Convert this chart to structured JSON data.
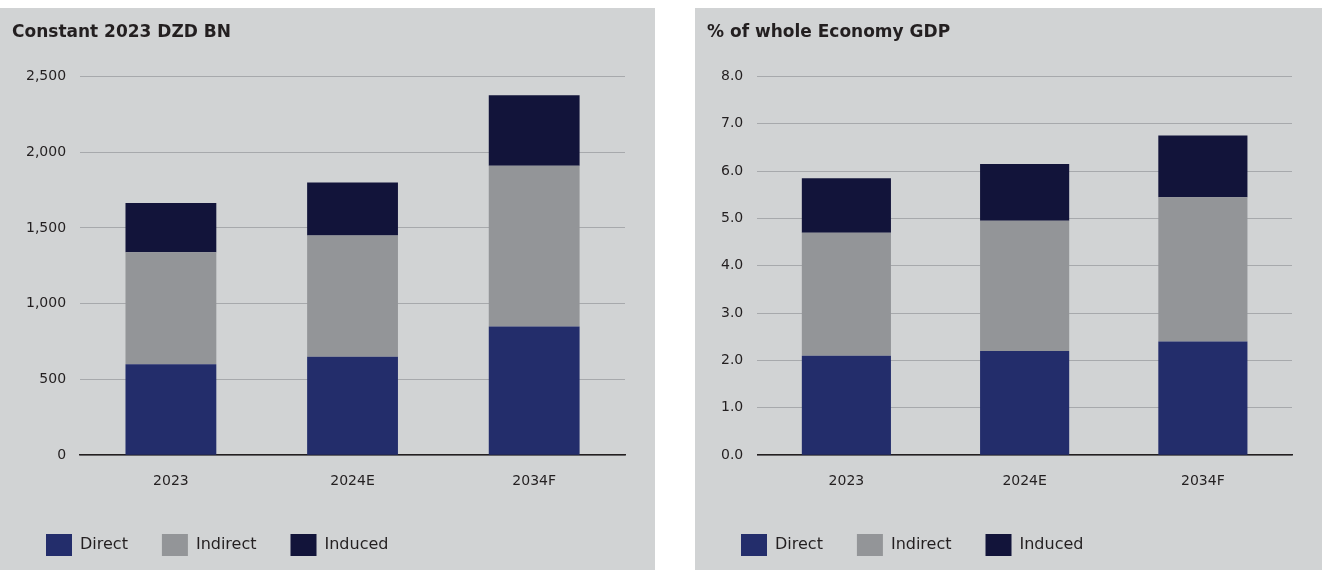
{
  "chart_data": [
    {
      "type": "bar",
      "title": "Constant 2023 DZD BN",
      "categories": [
        "2023",
        "2024E",
        "2034F"
      ],
      "stacked": true,
      "grid": "y",
      "legend": "bottom",
      "ylim": [
        0,
        2500
      ],
      "yticks": [
        0,
        500,
        {
          "value": 1000,
          "label": "1,000"
        },
        {
          "value": 1500,
          "label": "1,500"
        },
        {
          "value": 2000,
          "label": "2,000"
        },
        {
          "value": 2500,
          "label": "2,500"
        }
      ],
      "series": [
        {
          "name": "Direct",
          "color": "#232d6b",
          "values": [
            600,
            650,
            850
          ]
        },
        {
          "name": "Indirect",
          "color": "#939598",
          "values": [
            740,
            800,
            1060
          ]
        },
        {
          "name": "Induced",
          "color": "#12143a",
          "values": [
            325,
            350,
            465
          ]
        }
      ]
    },
    {
      "type": "bar",
      "title": "% of whole Economy GDP",
      "categories": [
        "2023",
        "2024E",
        "2034F"
      ],
      "stacked": true,
      "grid": "y",
      "legend": "bottom",
      "ylim": [
        0,
        8
      ],
      "yticks": [
        {
          "value": 0,
          "label": "0.0"
        },
        {
          "value": 1,
          "label": "1.0"
        },
        {
          "value": 2,
          "label": "2.0"
        },
        {
          "value": 3,
          "label": "3.0"
        },
        {
          "value": 4,
          "label": "4.0"
        },
        {
          "value": 5,
          "label": "5.0"
        },
        {
          "value": 6,
          "label": "6.0"
        },
        {
          "value": 7,
          "label": "7.0"
        },
        {
          "value": 8,
          "label": "8.0"
        }
      ],
      "series": [
        {
          "name": "Direct",
          "color": "#232d6b",
          "values": [
            2.1,
            2.2,
            2.4
          ]
        },
        {
          "name": "Indirect",
          "color": "#939598",
          "values": [
            2.6,
            2.75,
            3.05
          ]
        },
        {
          "name": "Induced",
          "color": "#12143a",
          "values": [
            1.15,
            1.2,
            1.3
          ]
        }
      ]
    }
  ]
}
